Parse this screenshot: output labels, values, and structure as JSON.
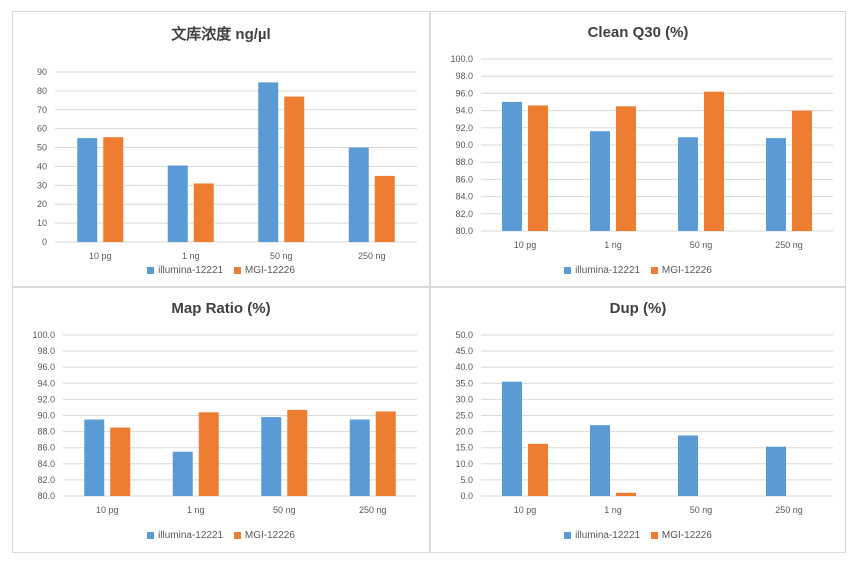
{
  "colors": {
    "illumina": "#5b9bd5",
    "mgi": "#ed7d31",
    "grid": "#d9d9d9"
  },
  "chart_data": [
    {
      "type": "bar",
      "title": "文库浓度 ng/µl",
      "categories": [
        "10 pg",
        "1 ng",
        "50 ng",
        "250 ng"
      ],
      "series": [
        {
          "name": "illumina-12221",
          "values": [
            55,
            40.5,
            84.5,
            50
          ]
        },
        {
          "name": "MGI-12226",
          "values": [
            55.5,
            31,
            77,
            35
          ]
        }
      ],
      "ylim": [
        0,
        90
      ],
      "yticks": [
        "0",
        "10",
        "20",
        "30",
        "40",
        "50",
        "60",
        "70",
        "80",
        "90"
      ],
      "legend": "bottom"
    },
    {
      "type": "bar",
      "title": "Clean Q30 (%)",
      "categories": [
        "10 pg",
        "1 ng",
        "50 ng",
        "250 ng"
      ],
      "series": [
        {
          "name": "illumina-12221",
          "values": [
            95.0,
            91.6,
            90.9,
            90.8
          ]
        },
        {
          "name": "MGI-12226",
          "values": [
            94.6,
            94.5,
            96.2,
            94.0
          ]
        }
      ],
      "ylim": [
        80,
        100
      ],
      "yticks": [
        "80.0",
        "82.0",
        "84.0",
        "86.0",
        "88.0",
        "90.0",
        "92.0",
        "94.0",
        "96.0",
        "98.0",
        "100.0"
      ],
      "legend": "bottom"
    },
    {
      "type": "bar",
      "title": "Map Ratio (%)",
      "categories": [
        "10 pg",
        "1 ng",
        "50 ng",
        "250 ng"
      ],
      "series": [
        {
          "name": "illumina-12221",
          "values": [
            89.5,
            85.5,
            89.8,
            89.5
          ]
        },
        {
          "name": "MGI-12226",
          "values": [
            88.5,
            90.4,
            90.7,
            90.5
          ]
        }
      ],
      "ylim": [
        80,
        100
      ],
      "yticks": [
        "80.0",
        "82.0",
        "84.0",
        "86.0",
        "88.0",
        "90.0",
        "92.0",
        "94.0",
        "96.0",
        "98.0",
        "100.0"
      ],
      "legend": "bottom"
    },
    {
      "type": "bar",
      "title": "Dup (%)",
      "categories": [
        "10 pg",
        "1 ng",
        "50 ng",
        "250 ng"
      ],
      "series": [
        {
          "name": "illumina-12221",
          "values": [
            35.5,
            22,
            18.8,
            15.3
          ]
        },
        {
          "name": "MGI-12226",
          "values": [
            16.2,
            1.0,
            0,
            0
          ]
        }
      ],
      "ylim": [
        0,
        50
      ],
      "yticks": [
        "0.0",
        "5.0",
        "10.0",
        "15.0",
        "20.0",
        "25.0",
        "30.0",
        "35.0",
        "40.0",
        "45.0",
        "50.0"
      ],
      "legend": "bottom"
    }
  ]
}
